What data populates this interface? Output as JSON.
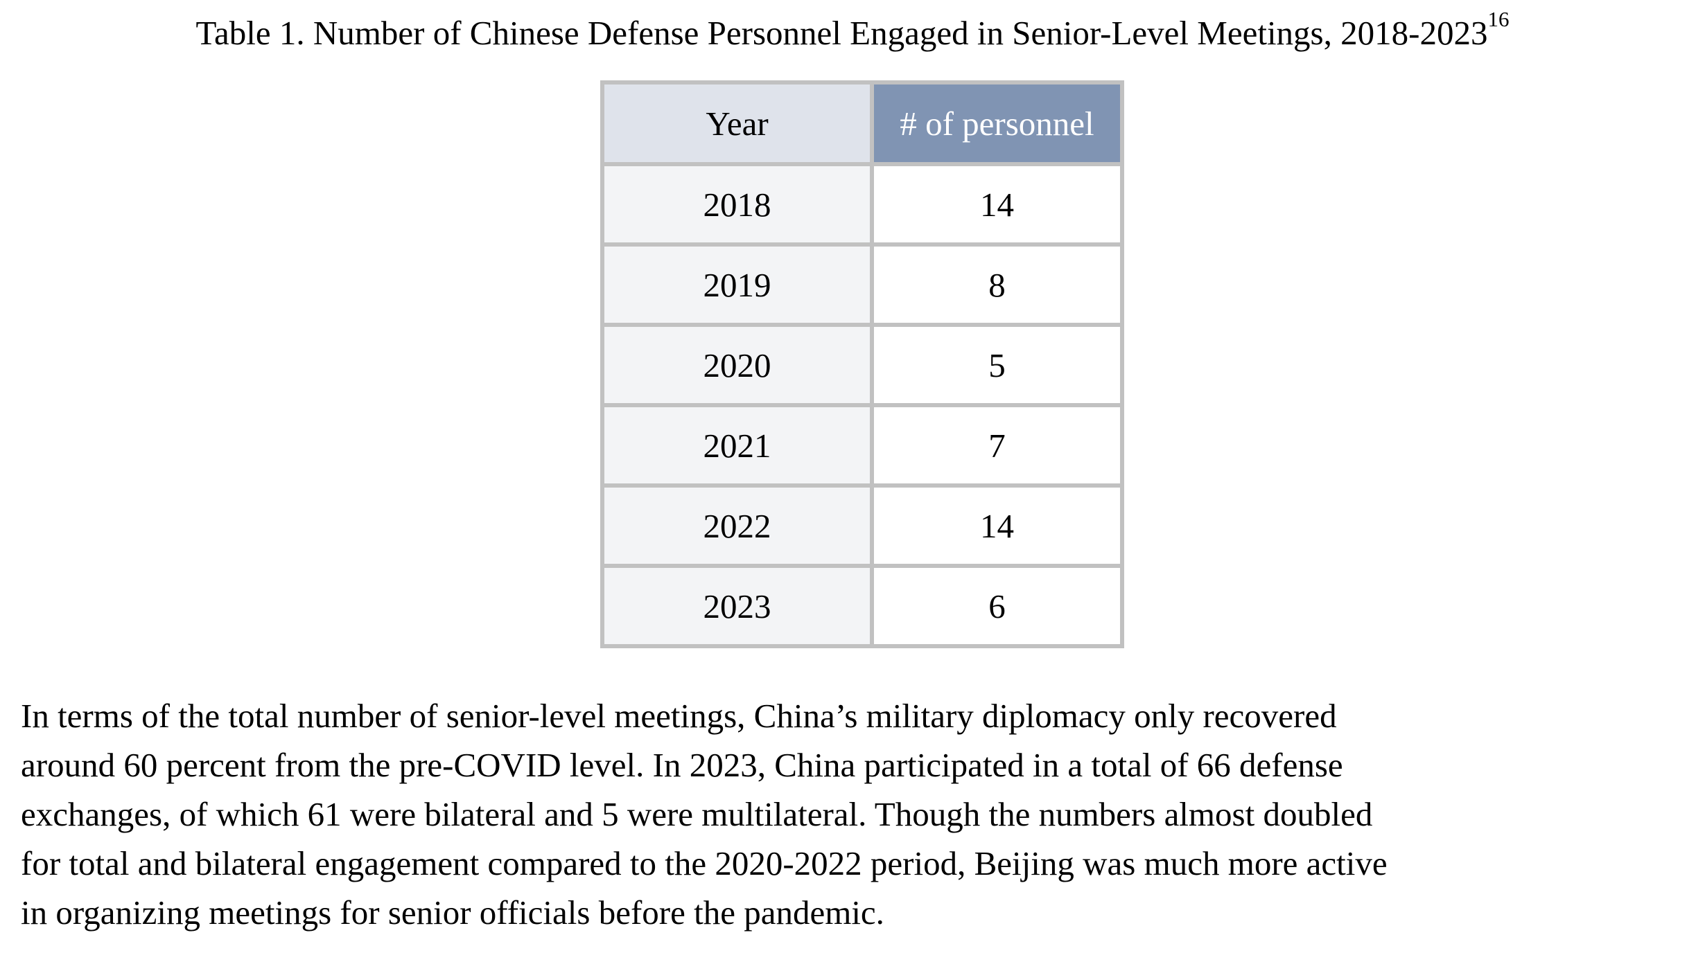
{
  "title": {
    "text": "Table 1. Number of Chinese Defense Personnel Engaged in Senior-Level Meetings, 2018-2023",
    "footnote_ref": "16"
  },
  "table": {
    "headers": {
      "year": "Year",
      "personnel": "# of personnel"
    },
    "rows": [
      {
        "year": "2018",
        "personnel": "14"
      },
      {
        "year": "2019",
        "personnel": "8"
      },
      {
        "year": "2020",
        "personnel": "5"
      },
      {
        "year": "2021",
        "personnel": "7"
      },
      {
        "year": "2022",
        "personnel": "14"
      },
      {
        "year": "2023",
        "personnel": "6"
      }
    ],
    "colors": {
      "header_year_bg": "#dfe3eb",
      "header_personnel_bg": "#8094b3",
      "header_personnel_text": "#ffffff",
      "year_column_bg": "#f3f4f6",
      "personnel_column_bg": "#ffffff",
      "border": "#c1c1c1",
      "header_divider": "#ffffff"
    }
  },
  "paragraph": {
    "lines": [
      "In terms of the total number of senior-level meetings, China’s military diplomacy only recovered",
      "around 60 percent from the pre-COVID level. In 2023, China participated in a total of 66 defense",
      "exchanges, of which 61 were bilateral and 5 were multilateral. Though the numbers almost doubled",
      "for total and bilateral engagement compared to the 2020-2022 period, Beijing was much more active",
      "in organizing meetings for senior officials before the pandemic."
    ]
  }
}
